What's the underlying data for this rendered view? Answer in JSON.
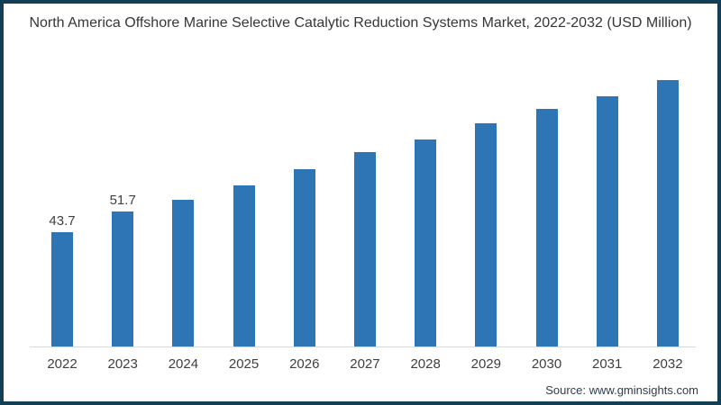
{
  "chart_data": {
    "type": "bar",
    "title": "North America Offshore Marine Selective Catalytic Reduction Systems Market, 2022-2032 (USD Million)",
    "categories": [
      "2022",
      "2023",
      "2024",
      "2025",
      "2026",
      "2027",
      "2028",
      "2029",
      "2030",
      "2031",
      "2032"
    ],
    "values": [
      43.7,
      51.7,
      55.9,
      61.5,
      67.8,
      74.3,
      79.0,
      85.4,
      90.6,
      95.7,
      101.9
    ],
    "data_labels": [
      "43.7",
      "51.7",
      "",
      "",
      "",
      "",
      "",
      "",
      "",
      "",
      ""
    ],
    "xlabel": "",
    "ylabel": "",
    "ylim": [
      0,
      110
    ],
    "grid": "off",
    "legend": "none",
    "source": "Source: www.gminsights.com"
  },
  "colors": {
    "bar": "#2e75b6",
    "frame_border": "#123f55",
    "axis_line": "#d9d9d9",
    "title_text": "#363636",
    "tick_text": "#404040",
    "source_text": "#2d3e50"
  }
}
